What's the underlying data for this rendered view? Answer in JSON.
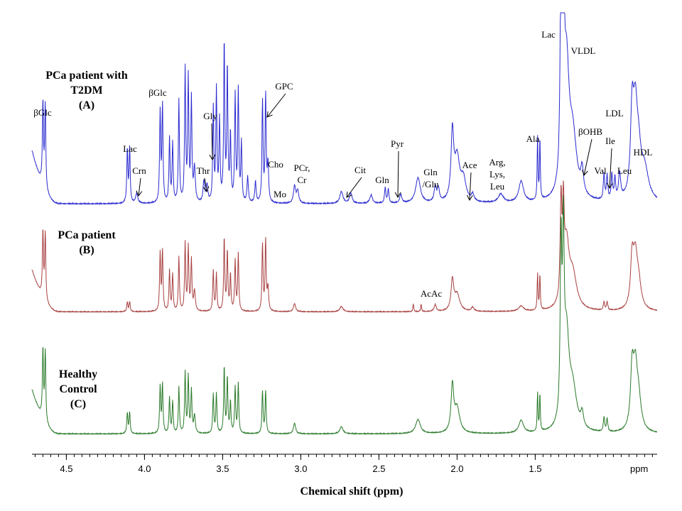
{
  "chart_data": {
    "type": "line",
    "title": "",
    "xlabel": "Chemical shift (ppm)",
    "x_unit_label": "ppm",
    "x_reversed": true,
    "xlim": [
      4.72,
      0.72
    ],
    "x_ticks": [
      4.5,
      4.0,
      3.5,
      3.0,
      2.5,
      2.0,
      1.5
    ],
    "x_tick_labels": [
      "4.5",
      "4.0",
      "3.5",
      "3.0",
      "2.5",
      "2.0",
      "1.5"
    ],
    "grid": false,
    "series": [
      {
        "key": "A",
        "label_lines": [
          "PCa patient with",
          "T2DM",
          "(A)"
        ],
        "color": "#2b2bd0",
        "baseline": 0.1,
        "peaks": [
          [
            4.65,
            1.0,
            0.004
          ],
          [
            4.635,
            1.0,
            0.004
          ],
          [
            4.11,
            0.65,
            0.004
          ],
          [
            4.095,
            0.65,
            0.004
          ],
          [
            4.05,
            0.12,
            0.008
          ],
          [
            3.9,
            1.05,
            0.004
          ],
          [
            3.885,
            1.15,
            0.004
          ],
          [
            3.84,
            0.75,
            0.004
          ],
          [
            3.82,
            0.7,
            0.004
          ],
          [
            3.78,
            1.2,
            0.004
          ],
          [
            3.74,
            1.55,
            0.004
          ],
          [
            3.72,
            1.45,
            0.004
          ],
          [
            3.7,
            1.2,
            0.004
          ],
          [
            3.68,
            0.4,
            0.006
          ],
          [
            3.62,
            0.25,
            0.006
          ],
          [
            3.6,
            0.2,
            0.006
          ],
          [
            3.56,
            1.1,
            0.004
          ],
          [
            3.54,
            1.3,
            0.004
          ],
          [
            3.52,
            0.95,
            0.004
          ],
          [
            3.49,
            1.9,
            0.004
          ],
          [
            3.47,
            1.6,
            0.004
          ],
          [
            3.45,
            0.8,
            0.004
          ],
          [
            3.42,
            1.25,
            0.004
          ],
          [
            3.4,
            1.3,
            0.004
          ],
          [
            3.38,
            0.7,
            0.004
          ],
          [
            3.34,
            0.3,
            0.005
          ],
          [
            3.29,
            0.25,
            0.005
          ],
          [
            3.245,
            1.2,
            0.004
          ],
          [
            3.225,
            1.25,
            0.004
          ],
          [
            3.21,
            0.45,
            0.005
          ],
          [
            3.04,
            0.2,
            0.008
          ],
          [
            3.02,
            0.15,
            0.008
          ],
          [
            2.74,
            0.14,
            0.012
          ],
          [
            2.68,
            0.12,
            0.01
          ],
          [
            2.55,
            0.1,
            0.01
          ],
          [
            2.46,
            0.18,
            0.005
          ],
          [
            2.44,
            0.16,
            0.005
          ],
          [
            2.36,
            0.1,
            0.008
          ],
          [
            2.25,
            0.3,
            0.018
          ],
          [
            2.14,
            0.18,
            0.008
          ],
          [
            2.12,
            0.16,
            0.008
          ],
          [
            2.03,
            0.78,
            0.01
          ],
          [
            2.0,
            0.5,
            0.02
          ],
          [
            1.96,
            0.25,
            0.02
          ],
          [
            1.9,
            0.08,
            0.01
          ],
          [
            1.72,
            0.1,
            0.02
          ],
          [
            1.59,
            0.25,
            0.018
          ],
          [
            1.485,
            0.75,
            0.003
          ],
          [
            1.47,
            0.75,
            0.003
          ],
          [
            1.335,
            2.6,
            0.006
          ],
          [
            1.32,
            2.5,
            0.006
          ],
          [
            1.3,
            1.45,
            0.02
          ],
          [
            1.26,
            0.7,
            0.03
          ],
          [
            1.2,
            0.28,
            0.01
          ],
          [
            1.06,
            0.3,
            0.005
          ],
          [
            1.04,
            0.28,
            0.005
          ],
          [
            1.01,
            0.3,
            0.005
          ],
          [
            0.99,
            0.25,
            0.005
          ],
          [
            0.96,
            0.3,
            0.008
          ],
          [
            0.88,
            0.95,
            0.012
          ],
          [
            0.86,
            0.85,
            0.015
          ],
          [
            0.84,
            0.5,
            0.02
          ],
          [
            0.8,
            0.35,
            0.03
          ]
        ]
      },
      {
        "key": "B",
        "label_lines": [
          "PCa patient",
          "(B)"
        ],
        "color": "#a84040",
        "baseline": 0.1,
        "peaks": [
          [
            4.65,
            1.0,
            0.004
          ],
          [
            4.635,
            1.0,
            0.004
          ],
          [
            4.11,
            0.15,
            0.004
          ],
          [
            4.095,
            0.15,
            0.004
          ],
          [
            3.9,
            0.85,
            0.004
          ],
          [
            3.885,
            0.9,
            0.004
          ],
          [
            3.84,
            0.6,
            0.004
          ],
          [
            3.82,
            0.55,
            0.004
          ],
          [
            3.78,
            0.8,
            0.004
          ],
          [
            3.74,
            1.0,
            0.004
          ],
          [
            3.72,
            0.95,
            0.004
          ],
          [
            3.7,
            0.75,
            0.004
          ],
          [
            3.68,
            0.3,
            0.006
          ],
          [
            3.56,
            0.6,
            0.004
          ],
          [
            3.54,
            0.55,
            0.004
          ],
          [
            3.49,
            1.1,
            0.004
          ],
          [
            3.47,
            0.9,
            0.004
          ],
          [
            3.45,
            0.55,
            0.004
          ],
          [
            3.42,
            0.75,
            0.004
          ],
          [
            3.4,
            0.85,
            0.004
          ],
          [
            3.245,
            1.0,
            0.004
          ],
          [
            3.225,
            1.05,
            0.004
          ],
          [
            3.21,
            0.35,
            0.005
          ],
          [
            3.04,
            0.12,
            0.008
          ],
          [
            2.74,
            0.08,
            0.012
          ],
          [
            2.28,
            0.12,
            0.003
          ],
          [
            2.23,
            0.12,
            0.003
          ],
          [
            2.14,
            0.1,
            0.008
          ],
          [
            2.03,
            0.45,
            0.01
          ],
          [
            2.0,
            0.25,
            0.02
          ],
          [
            1.9,
            0.06,
            0.01
          ],
          [
            1.59,
            0.08,
            0.018
          ],
          [
            1.485,
            0.55,
            0.003
          ],
          [
            1.47,
            0.55,
            0.003
          ],
          [
            1.335,
            1.45,
            0.006
          ],
          [
            1.32,
            1.2,
            0.006
          ],
          [
            1.3,
            0.9,
            0.02
          ],
          [
            1.26,
            0.5,
            0.03
          ],
          [
            1.06,
            0.12,
            0.005
          ],
          [
            1.04,
            0.12,
            0.005
          ],
          [
            0.88,
            0.7,
            0.012
          ],
          [
            0.86,
            0.65,
            0.015
          ],
          [
            0.84,
            0.4,
            0.02
          ]
        ]
      },
      {
        "key": "C",
        "label_lines": [
          "Healthy",
          "Control",
          "(C)"
        ],
        "color": "#2a7a2a",
        "baseline": 0.1,
        "peaks": [
          [
            4.65,
            1.0,
            0.004
          ],
          [
            4.635,
            1.0,
            0.004
          ],
          [
            4.11,
            0.3,
            0.004
          ],
          [
            4.095,
            0.3,
            0.004
          ],
          [
            3.9,
            0.65,
            0.004
          ],
          [
            3.885,
            0.7,
            0.004
          ],
          [
            3.84,
            0.5,
            0.004
          ],
          [
            3.82,
            0.45,
            0.004
          ],
          [
            3.78,
            0.65,
            0.004
          ],
          [
            3.74,
            0.85,
            0.004
          ],
          [
            3.72,
            0.8,
            0.004
          ],
          [
            3.7,
            0.6,
            0.004
          ],
          [
            3.68,
            0.25,
            0.006
          ],
          [
            3.56,
            0.55,
            0.004
          ],
          [
            3.54,
            0.55,
            0.004
          ],
          [
            3.49,
            0.95,
            0.004
          ],
          [
            3.47,
            0.8,
            0.004
          ],
          [
            3.45,
            0.45,
            0.004
          ],
          [
            3.42,
            0.65,
            0.004
          ],
          [
            3.4,
            0.7,
            0.004
          ],
          [
            3.245,
            0.6,
            0.004
          ],
          [
            3.225,
            0.6,
            0.004
          ],
          [
            3.04,
            0.15,
            0.008
          ],
          [
            2.74,
            0.1,
            0.012
          ],
          [
            2.25,
            0.2,
            0.018
          ],
          [
            2.03,
            0.65,
            0.01
          ],
          [
            2.0,
            0.35,
            0.02
          ],
          [
            1.59,
            0.18,
            0.018
          ],
          [
            1.485,
            0.55,
            0.003
          ],
          [
            1.47,
            0.55,
            0.003
          ],
          [
            1.335,
            2.4,
            0.006
          ],
          [
            1.32,
            2.3,
            0.006
          ],
          [
            1.3,
            1.25,
            0.02
          ],
          [
            1.26,
            0.55,
            0.03
          ],
          [
            1.2,
            0.2,
            0.01
          ],
          [
            1.06,
            0.2,
            0.005
          ],
          [
            1.04,
            0.18,
            0.005
          ],
          [
            0.88,
            0.8,
            0.012
          ],
          [
            0.86,
            0.75,
            0.015
          ],
          [
            0.84,
            0.45,
            0.02
          ]
        ]
      }
    ],
    "annotations": [
      {
        "text": "βGlc",
        "x": 4.75,
        "series": "A",
        "arrow": false,
        "lines": [
          "βGlc"
        ]
      },
      {
        "text": "Lac",
        "x": 4.12,
        "series": "A",
        "arrow": false,
        "lines": [
          "Lac"
        ]
      },
      {
        "text": "Crn",
        "x": 4.03,
        "series": "A",
        "arrow": true,
        "lines": [
          "Crn"
        ]
      },
      {
        "text": "βGlc",
        "x": 3.91,
        "series": "A",
        "arrow": false,
        "lines": [
          "βGlc"
        ]
      },
      {
        "text": "Thr",
        "x": 3.61,
        "series": "A",
        "arrow": true,
        "lines": [
          "Thr"
        ]
      },
      {
        "text": "Gly",
        "x": 3.56,
        "series": "A",
        "arrow": true,
        "lines": [
          "Gly"
        ]
      },
      {
        "text": "GPC",
        "x": 3.22,
        "series": "A",
        "arrow": true,
        "lines": [
          "GPC"
        ]
      },
      {
        "text": "Cho",
        "x": 3.16,
        "series": "A",
        "arrow": false,
        "lines": [
          "Cho"
        ]
      },
      {
        "text": "Mo",
        "x": 3.13,
        "series": "A",
        "arrow": false,
        "lines": [
          "Mo"
        ]
      },
      {
        "text": "PCr, Cr",
        "x": 3.0,
        "series": "A",
        "arrow": false,
        "lines": [
          "PCr,",
          "Cr"
        ]
      },
      {
        "text": "Cit",
        "x": 2.7,
        "series": "A",
        "arrow": true,
        "lines": [
          "Cit"
        ]
      },
      {
        "text": "Gln",
        "x": 2.46,
        "series": "A",
        "arrow": false,
        "lines": [
          "Gln"
        ]
      },
      {
        "text": "Pyr",
        "x": 2.36,
        "series": "A",
        "arrow": true,
        "lines": [
          "Pyr"
        ]
      },
      {
        "text": "Gln /Glu",
        "x": 2.12,
        "series": "A",
        "arrow": false,
        "lines": [
          "Gln",
          "/Glu"
        ]
      },
      {
        "text": "Ace",
        "x": 1.91,
        "series": "A",
        "arrow": true,
        "lines": [
          "Ace"
        ]
      },
      {
        "text": "Arg, Lys, Leu",
        "x": 1.72,
        "series": "A",
        "arrow": false,
        "lines": [
          "Arg,",
          "Lys,",
          "Leu"
        ]
      },
      {
        "text": "Ala",
        "x": 1.49,
        "series": "A",
        "arrow": false,
        "lines": [
          "Ala"
        ]
      },
      {
        "text": "Lac",
        "x": 1.4,
        "series": "A",
        "arrow": false,
        "lines": [
          "Lac"
        ]
      },
      {
        "text": "VLDL",
        "x": 1.22,
        "series": "A",
        "arrow": false,
        "lines": [
          "VLDL"
        ]
      },
      {
        "text": "βOHB",
        "x": 1.19,
        "series": "A",
        "arrow": true,
        "lines": [
          "βOHB"
        ]
      },
      {
        "text": "Val",
        "x": 1.04,
        "series": "A",
        "arrow": false,
        "lines": [
          "Val"
        ]
      },
      {
        "text": "Ile",
        "x": 0.96,
        "series": "A",
        "arrow": true,
        "lines": [
          "Ile"
        ]
      },
      {
        "text": "Leu",
        "x": 0.92,
        "series": "A",
        "arrow": false,
        "lines": [
          "Leu"
        ]
      },
      {
        "text": "LDL",
        "x": 0.91,
        "series": "A",
        "arrow": false,
        "lines": [
          "LDL"
        ]
      },
      {
        "text": "HDL",
        "x": 0.84,
        "series": "A",
        "arrow": false,
        "lines": [
          "HDL"
        ]
      },
      {
        "text": "AcAc",
        "x": 2.27,
        "series": "B",
        "arrow": false,
        "lines": [
          "AcAc"
        ]
      }
    ]
  }
}
